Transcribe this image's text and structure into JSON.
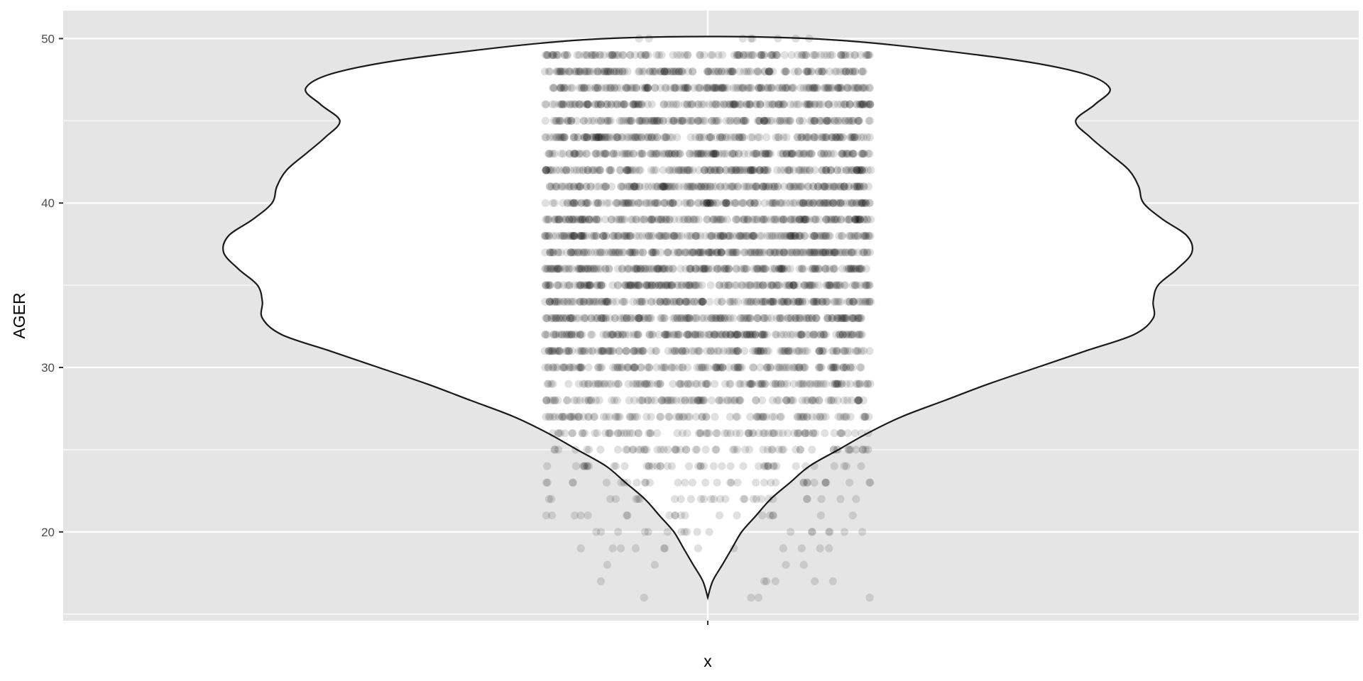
{
  "chart_data": {
    "type": "violin",
    "overlay": "jittered-scatter",
    "xlabel": "x",
    "ylabel": "AGER",
    "x_categories": [
      ""
    ],
    "ylim": [
      14.6,
      51.7
    ],
    "y_ticks": [
      20,
      30,
      40,
      50
    ],
    "grid": true,
    "legend": "none",
    "colors": {
      "panel_background": "#e5e5e5",
      "grid_line": "#ffffff",
      "violin_fill": "#ffffff",
      "violin_outline": "#1a1a1a",
      "point": "#000000",
      "tick_text": "#4d4d4d"
    },
    "violin_density": [
      {
        "y": 16.0,
        "width": 0.0
      },
      {
        "y": 17.0,
        "width": 0.01
      },
      {
        "y": 18.0,
        "width": 0.03
      },
      {
        "y": 19.0,
        "width": 0.05
      },
      {
        "y": 20.0,
        "width": 0.07
      },
      {
        "y": 21.0,
        "width": 0.1
      },
      {
        "y": 22.0,
        "width": 0.13
      },
      {
        "y": 23.0,
        "width": 0.17
      },
      {
        "y": 24.0,
        "width": 0.21
      },
      {
        "y": 25.0,
        "width": 0.27
      },
      {
        "y": 26.0,
        "width": 0.33
      },
      {
        "y": 27.0,
        "width": 0.4
      },
      {
        "y": 28.0,
        "width": 0.49
      },
      {
        "y": 29.0,
        "width": 0.58
      },
      {
        "y": 30.0,
        "width": 0.68
      },
      {
        "y": 31.0,
        "width": 0.78
      },
      {
        "y": 32.0,
        "width": 0.88
      },
      {
        "y": 33.0,
        "width": 0.92
      },
      {
        "y": 34.0,
        "width": 0.92
      },
      {
        "y": 35.0,
        "width": 0.93
      },
      {
        "y": 36.0,
        "width": 0.97
      },
      {
        "y": 37.0,
        "width": 1.0
      },
      {
        "y": 38.0,
        "width": 0.99
      },
      {
        "y": 39.0,
        "width": 0.94
      },
      {
        "y": 40.0,
        "width": 0.9
      },
      {
        "y": 41.0,
        "width": 0.89
      },
      {
        "y": 42.0,
        "width": 0.87
      },
      {
        "y": 43.0,
        "width": 0.83
      },
      {
        "y": 44.0,
        "width": 0.79
      },
      {
        "y": 45.0,
        "width": 0.76
      },
      {
        "y": 46.0,
        "width": 0.8
      },
      {
        "y": 47.0,
        "width": 0.83
      },
      {
        "y": 48.0,
        "width": 0.76
      },
      {
        "y": 49.0,
        "width": 0.56
      },
      {
        "y": 50.0,
        "width": 0.21
      }
    ],
    "jitter_row_counts": [
      {
        "age": 16,
        "count": 4
      },
      {
        "age": 17,
        "count": 6
      },
      {
        "age": 18,
        "count": 4
      },
      {
        "age": 19,
        "count": 12
      },
      {
        "age": 20,
        "count": 18
      },
      {
        "age": 21,
        "count": 20
      },
      {
        "age": 22,
        "count": 28
      },
      {
        "age": 23,
        "count": 35
      },
      {
        "age": 24,
        "count": 45
      },
      {
        "age": 25,
        "count": 60
      },
      {
        "age": 26,
        "count": 80
      },
      {
        "age": 27,
        "count": 95
      },
      {
        "age": 28,
        "count": 105
      },
      {
        "age": 29,
        "count": 115
      },
      {
        "age": 30,
        "count": 130
      },
      {
        "age": 31,
        "count": 145
      },
      {
        "age": 32,
        "count": 170
      },
      {
        "age": 33,
        "count": 175
      },
      {
        "age": 34,
        "count": 175
      },
      {
        "age": 35,
        "count": 180
      },
      {
        "age": 36,
        "count": 185
      },
      {
        "age": 37,
        "count": 195
      },
      {
        "age": 38,
        "count": 190
      },
      {
        "age": 39,
        "count": 180
      },
      {
        "age": 40,
        "count": 175
      },
      {
        "age": 41,
        "count": 172
      },
      {
        "age": 42,
        "count": 170
      },
      {
        "age": 43,
        "count": 165
      },
      {
        "age": 44,
        "count": 160
      },
      {
        "age": 45,
        "count": 155
      },
      {
        "age": 46,
        "count": 165
      },
      {
        "age": 47,
        "count": 175
      },
      {
        "age": 48,
        "count": 160
      },
      {
        "age": 49,
        "count": 120
      },
      {
        "age": 50,
        "count": 8
      }
    ],
    "point_alpha": 0.12
  }
}
